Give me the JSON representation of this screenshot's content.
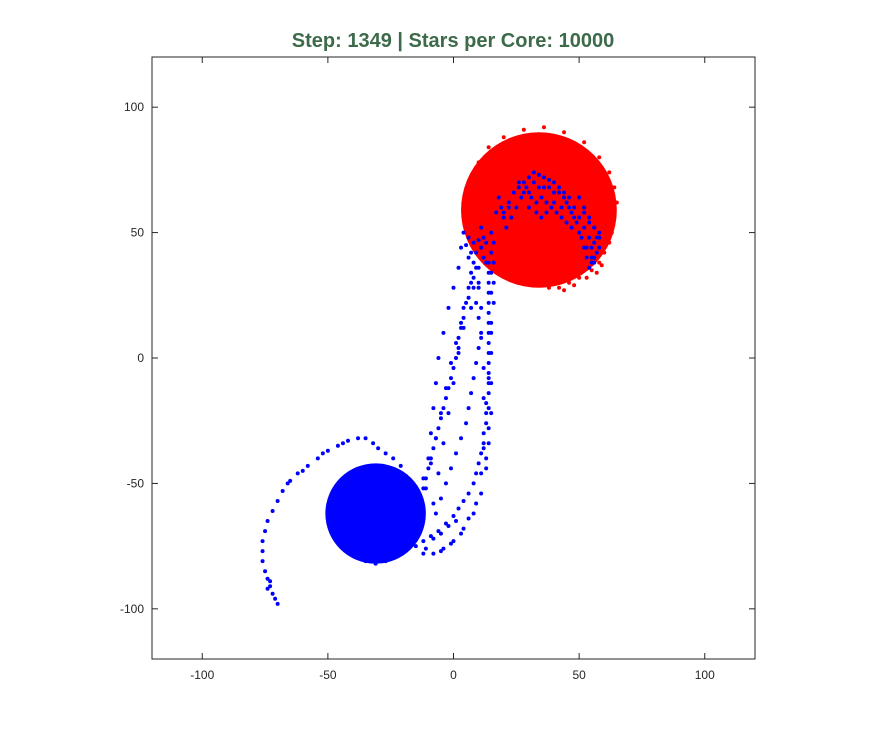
{
  "chart_data": {
    "type": "scatter",
    "title": "Step: 1349 | Stars per Core: 10000",
    "title_color": "#3d6b4a",
    "xlabel": "",
    "ylabel": "",
    "xlim": [
      -120,
      120
    ],
    "ylim": [
      -120,
      120
    ],
    "xticks": [
      -100,
      -50,
      0,
      50,
      100
    ],
    "yticks": [
      -100,
      -50,
      0,
      50,
      100
    ],
    "grid": false,
    "axis_color": "#262626",
    "background": "#ffffff",
    "series": [
      {
        "color": "#ff0000",
        "core": {
          "center": [
            34,
            59
          ],
          "radius": 31
        },
        "points": [
          [
            42,
            28
          ],
          [
            46,
            30
          ],
          [
            50,
            32
          ],
          [
            55,
            35
          ],
          [
            58,
            38
          ],
          [
            60,
            42
          ],
          [
            62,
            46
          ],
          [
            63,
            50
          ],
          [
            64,
            56
          ],
          [
            65,
            62
          ],
          [
            64,
            68
          ],
          [
            62,
            74
          ],
          [
            58,
            80
          ],
          [
            52,
            86
          ],
          [
            44,
            90
          ],
          [
            36,
            92
          ],
          [
            28,
            91
          ],
          [
            20,
            88
          ],
          [
            14,
            84
          ],
          [
            10,
            78
          ],
          [
            8,
            72
          ],
          [
            8,
            66
          ],
          [
            9,
            60
          ],
          [
            11,
            54
          ],
          [
            14,
            48
          ],
          [
            18,
            44
          ],
          [
            24,
            40
          ],
          [
            30,
            38
          ],
          [
            36,
            36
          ],
          [
            40,
            33
          ],
          [
            38,
            28
          ],
          [
            44,
            27
          ],
          [
            48,
            29
          ],
          [
            53,
            32
          ],
          [
            57,
            34
          ],
          [
            59,
            37
          ]
        ]
      },
      {
        "color": "#0000ff",
        "core": {
          "center": [
            -31,
            -62
          ],
          "radius": 20
        },
        "points": [
          [
            -70,
            -98
          ],
          [
            -71,
            -96
          ],
          [
            -72,
            -94
          ],
          [
            -73,
            -91
          ],
          [
            -74,
            -88
          ],
          [
            -75,
            -85
          ],
          [
            -76,
            -81
          ],
          [
            -76,
            -77
          ],
          [
            -76,
            -73
          ],
          [
            -75,
            -69
          ],
          [
            -74,
            -65
          ],
          [
            -72,
            -61
          ],
          [
            -70,
            -57
          ],
          [
            -68,
            -53
          ],
          [
            -65,
            -49
          ],
          [
            -62,
            -46
          ],
          [
            -58,
            -43
          ],
          [
            -54,
            -40
          ],
          [
            -50,
            -37
          ],
          [
            -46,
            -35
          ],
          [
            -42,
            -33
          ],
          [
            -38,
            -32
          ],
          [
            -35,
            -32
          ],
          [
            -32,
            -34
          ],
          [
            -30,
            -36
          ],
          [
            -27,
            -38
          ],
          [
            -24,
            -40
          ],
          [
            -21,
            -43
          ],
          [
            -19,
            -47
          ],
          [
            -18,
            -51
          ],
          [
            -17,
            -55
          ],
          [
            -16,
            -59
          ],
          [
            -16,
            -63
          ],
          [
            -17,
            -67
          ],
          [
            -18,
            -71
          ],
          [
            -20,
            -75
          ],
          [
            -23,
            -78
          ],
          [
            -27,
            -81
          ],
          [
            -31,
            -82
          ],
          [
            -35,
            -81
          ],
          [
            -39,
            -79
          ],
          [
            -43,
            -76
          ],
          [
            -47,
            -72
          ],
          [
            -74,
            -92
          ],
          [
            -73,
            -89
          ],
          [
            -66,
            -50
          ],
          [
            -60,
            -45
          ],
          [
            -52,
            -38
          ],
          [
            -44,
            -34
          ],
          [
            -15,
            -75
          ],
          [
            -12,
            -73
          ],
          [
            -9,
            -71
          ],
          [
            -6,
            -69
          ],
          [
            -3,
            -66
          ],
          [
            0,
            -63
          ],
          [
            2,
            -60
          ],
          [
            4,
            -57
          ],
          [
            6,
            -54
          ],
          [
            8,
            -50
          ],
          [
            9,
            -46
          ],
          [
            10,
            -42
          ],
          [
            11,
            -38
          ],
          [
            12,
            -34
          ],
          [
            12,
            -30
          ],
          [
            13,
            -26
          ],
          [
            13,
            -22
          ],
          [
            13,
            -18
          ],
          [
            14,
            -14
          ],
          [
            14,
            -10
          ],
          [
            14,
            -6
          ],
          [
            14,
            -2
          ],
          [
            14,
            2
          ],
          [
            14,
            6
          ],
          [
            14,
            10
          ],
          [
            14,
            14
          ],
          [
            14,
            18
          ],
          [
            14,
            22
          ],
          [
            14,
            26
          ],
          [
            14,
            30
          ],
          [
            14,
            34
          ],
          [
            14,
            38
          ],
          [
            15,
            42
          ],
          [
            16,
            46
          ],
          [
            12,
            40
          ],
          [
            10,
            36
          ],
          [
            8,
            32
          ],
          [
            6,
            28
          ],
          [
            6,
            24
          ],
          [
            4,
            20
          ],
          [
            4,
            16
          ],
          [
            3,
            12
          ],
          [
            2,
            8
          ],
          [
            2,
            4
          ],
          [
            1,
            0
          ],
          [
            0,
            -4
          ],
          [
            -1,
            -8
          ],
          [
            -2,
            -12
          ],
          [
            -3,
            -16
          ],
          [
            -4,
            -20
          ],
          [
            -5,
            -24
          ],
          [
            -6,
            -28
          ],
          [
            -7,
            -32
          ],
          [
            -8,
            -36
          ],
          [
            -9,
            -40
          ],
          [
            -10,
            -44
          ],
          [
            -11,
            -48
          ],
          [
            -12,
            -52
          ],
          [
            -13,
            -56
          ],
          [
            -14,
            -60
          ],
          [
            -15,
            -64
          ],
          [
            -16,
            -68
          ],
          [
            5,
            45
          ],
          [
            6,
            40
          ],
          [
            7,
            34
          ],
          [
            8,
            28
          ],
          [
            9,
            22
          ],
          [
            10,
            16
          ],
          [
            11,
            10
          ],
          [
            10,
            4
          ],
          [
            9,
            -2
          ],
          [
            8,
            -8
          ],
          [
            7,
            -14
          ],
          [
            6,
            -20
          ],
          [
            5,
            -26
          ],
          [
            3,
            -32
          ],
          [
            1,
            -38
          ],
          [
            -1,
            -44
          ],
          [
            -3,
            -50
          ],
          [
            -5,
            -56
          ],
          [
            -7,
            -62
          ],
          [
            12,
            48
          ],
          [
            11,
            44
          ],
          [
            13,
            38
          ],
          [
            10,
            30
          ],
          [
            7,
            20
          ],
          [
            4,
            12
          ],
          [
            2,
            2
          ],
          [
            0,
            -10
          ],
          [
            -2,
            -22
          ],
          [
            -4,
            -34
          ],
          [
            -6,
            -46
          ],
          [
            -8,
            -58
          ],
          [
            15,
            50
          ],
          [
            16,
            38
          ],
          [
            15,
            26
          ],
          [
            15,
            14
          ],
          [
            15,
            2
          ],
          [
            15,
            -10
          ],
          [
            15,
            -22
          ],
          [
            14,
            -34
          ],
          [
            13,
            -44
          ],
          [
            11,
            -54
          ],
          [
            8,
            -62
          ],
          [
            4,
            -68
          ],
          [
            0,
            -73
          ],
          [
            -4,
            -76
          ],
          [
            -8,
            -78
          ],
          [
            -11,
            -76
          ],
          [
            -8,
            -72
          ],
          [
            -5,
            -70
          ],
          [
            -2,
            -67
          ],
          [
            1,
            -65
          ],
          [
            13,
            -40
          ],
          [
            14,
            -28
          ],
          [
            12,
            -16
          ],
          [
            12,
            -4
          ],
          [
            11,
            8
          ],
          [
            11,
            20
          ],
          [
            10,
            28
          ],
          [
            9,
            36
          ],
          [
            7,
            42
          ],
          [
            4,
            50
          ],
          [
            6,
            48
          ],
          [
            8,
            46
          ],
          [
            3,
            44
          ],
          [
            2,
            36
          ],
          [
            0,
            28
          ],
          [
            -2,
            20
          ],
          [
            -4,
            10
          ],
          [
            -6,
            0
          ],
          [
            -7,
            -10
          ],
          [
            -8,
            -20
          ],
          [
            -9,
            -30
          ],
          [
            -10,
            -40
          ],
          [
            -12,
            -48
          ],
          [
            -13,
            -56
          ],
          [
            12,
            -36
          ],
          [
            11,
            -46
          ],
          [
            9,
            -58
          ],
          [
            6,
            -64
          ],
          [
            3,
            -70
          ],
          [
            -1,
            -74
          ],
          [
            -5,
            -77
          ],
          [
            14,
            -8
          ],
          [
            14,
            -20
          ],
          [
            15,
            10
          ],
          [
            16,
            22
          ],
          [
            16,
            30
          ],
          [
            15,
            34
          ],
          [
            13,
            46
          ],
          [
            11,
            52
          ],
          [
            10,
            47
          ],
          [
            9,
            42
          ],
          [
            8,
            38
          ],
          [
            7,
            30
          ],
          [
            5,
            22
          ],
          [
            3,
            14
          ],
          [
            1,
            6
          ],
          [
            -1,
            -2
          ],
          [
            -3,
            -12
          ],
          [
            -5,
            -22
          ],
          [
            -7,
            -32
          ],
          [
            -9,
            -42
          ],
          [
            -11,
            -52
          ],
          [
            -13,
            -62
          ],
          [
            -14,
            -70
          ],
          [
            -12,
            -78
          ],
          [
            22,
            62
          ],
          [
            24,
            66
          ],
          [
            26,
            68
          ],
          [
            28,
            70
          ],
          [
            30,
            72
          ],
          [
            32,
            74
          ],
          [
            34,
            73
          ],
          [
            36,
            72
          ],
          [
            38,
            71
          ],
          [
            40,
            70
          ],
          [
            42,
            68
          ],
          [
            44,
            66
          ],
          [
            46,
            64
          ],
          [
            48,
            60
          ],
          [
            50,
            56
          ],
          [
            52,
            52
          ],
          [
            54,
            48
          ],
          [
            55,
            44
          ],
          [
            56,
            40
          ],
          [
            55,
            38
          ],
          [
            54,
            36
          ],
          [
            53,
            40
          ],
          [
            52,
            44
          ],
          [
            50,
            50
          ],
          [
            48,
            56
          ],
          [
            46,
            60
          ],
          [
            44,
            64
          ],
          [
            40,
            66
          ],
          [
            36,
            68
          ],
          [
            32,
            70
          ],
          [
            28,
            66
          ],
          [
            25,
            60
          ],
          [
            23,
            56
          ],
          [
            21,
            52
          ],
          [
            20,
            58
          ],
          [
            22,
            60
          ],
          [
            27,
            64
          ],
          [
            30,
            66
          ],
          [
            34,
            68
          ],
          [
            38,
            68
          ],
          [
            42,
            66
          ],
          [
            45,
            62
          ],
          [
            47,
            58
          ],
          [
            49,
            54
          ],
          [
            51,
            48
          ],
          [
            53,
            44
          ],
          [
            56,
            46
          ],
          [
            57,
            42
          ],
          [
            58,
            44
          ],
          [
            57,
            48
          ],
          [
            58,
            50
          ],
          [
            56,
            52
          ],
          [
            54,
            54
          ],
          [
            52,
            58
          ],
          [
            30,
            60
          ],
          [
            33,
            62
          ],
          [
            35,
            64
          ],
          [
            37,
            62
          ],
          [
            39,
            60
          ],
          [
            41,
            58
          ],
          [
            43,
            56
          ],
          [
            45,
            54
          ],
          [
            47,
            52
          ],
          [
            20,
            56
          ],
          [
            19,
            60
          ],
          [
            18,
            64
          ],
          [
            17,
            58
          ],
          [
            26,
            70
          ],
          [
            29,
            68
          ],
          [
            31,
            64
          ],
          [
            33,
            58
          ],
          [
            35,
            56
          ],
          [
            37,
            58
          ],
          [
            40,
            62
          ],
          [
            43,
            60
          ],
          [
            50,
            64
          ],
          [
            52,
            60
          ],
          [
            54,
            56
          ],
          [
            56,
            52
          ],
          [
            58,
            48
          ],
          [
            55,
            40
          ],
          [
            56,
            38
          ]
        ]
      }
    ]
  }
}
